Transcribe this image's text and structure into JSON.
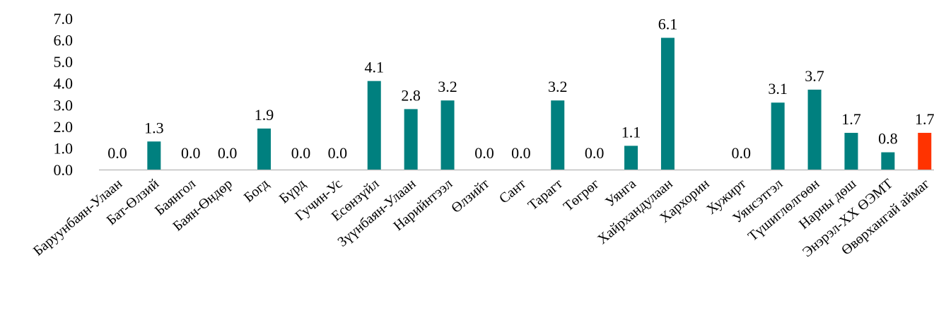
{
  "chart_data": {
    "type": "bar",
    "categories": [
      "Баруунбаян-Улаан",
      "Бат-Өлзий",
      "Баянгол",
      "Баян-Өндөр",
      "Богд",
      "Бүрд",
      "Гучин-Ус",
      "Есөнзүйл",
      "Зүүнбаян-Улаан",
      "Нарийнтээл",
      "Өлзийт",
      "Сант",
      "Тарагт",
      "Төгрөг",
      "Уянга",
      "Хайрхандулаан",
      "Хархорин",
      "Хужирт",
      "Уянсэтгэл",
      "Түшиглөлгөөн",
      "Нарны дөш",
      "Энэрэл-XX ӨЭМТ",
      "Өвөрхангай аймаг"
    ],
    "values": [
      0.0,
      1.3,
      0.0,
      0.0,
      1.9,
      0.0,
      0.0,
      4.1,
      2.8,
      3.2,
      0.0,
      0.0,
      3.2,
      0.0,
      1.1,
      6.1,
      null,
      0.0,
      3.1,
      3.7,
      1.7,
      0.8,
      1.7
    ],
    "data_labels": [
      "0.0",
      "1.3",
      "0.0",
      "0.0",
      "1.9",
      "0.0",
      "0.0",
      "4.1",
      "2.8",
      "3.2",
      "0.0",
      "0.0",
      "3.2",
      "0.0",
      "1.1",
      "6.1",
      "",
      "0.0",
      "3.1",
      "3.7",
      "1.7",
      "0.8",
      "1.7"
    ],
    "y_ticks": [
      "0.0",
      "1.0",
      "2.0",
      "3.0",
      "4.0",
      "5.0",
      "6.0",
      "7.0"
    ],
    "ylim": [
      0,
      7
    ],
    "grid": false,
    "legend": "none",
    "title": "",
    "xlabel": "",
    "ylabel": "",
    "colors": {
      "default_bar": "#00807F",
      "highlight_bar": "#FF3300",
      "axis": "#bfbfbf"
    },
    "highlight_index": 22
  }
}
